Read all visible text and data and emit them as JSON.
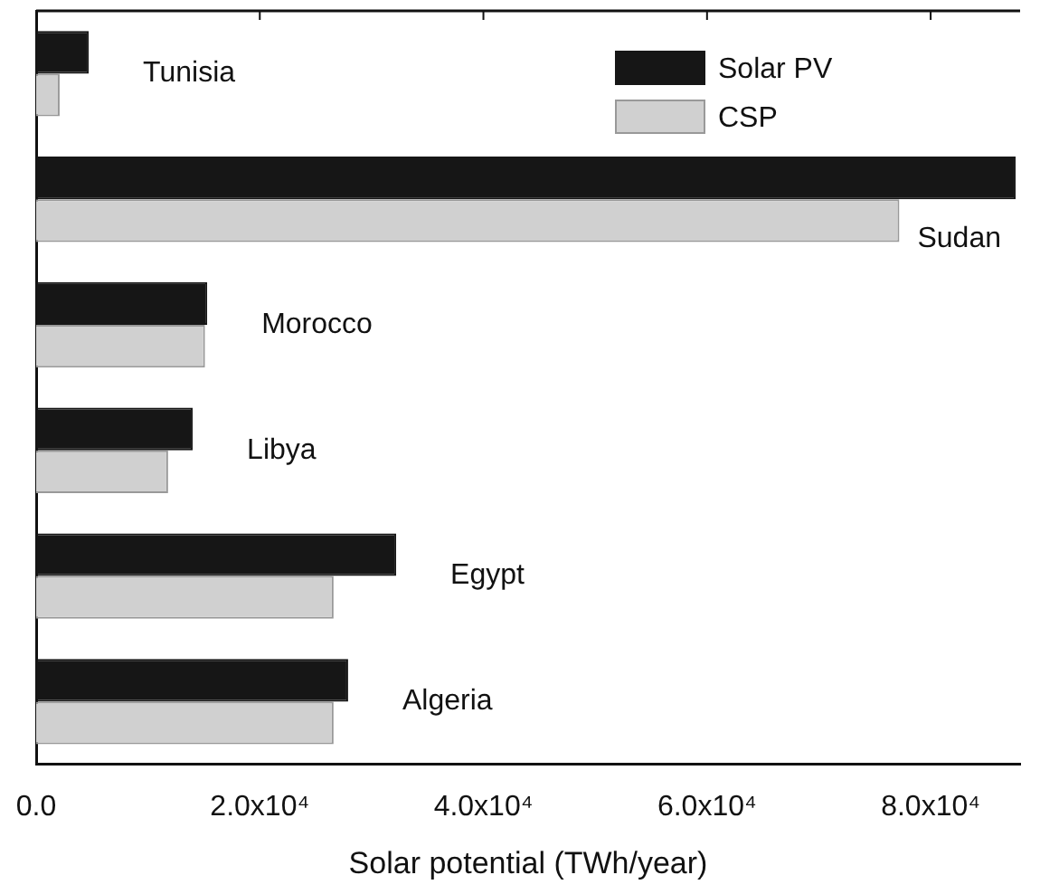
{
  "chart_data": {
    "type": "bar",
    "orientation": "horizontal",
    "categories": [
      "Tunisia",
      "Sudan",
      "Morocco",
      "Libya",
      "Egypt",
      "Algeria"
    ],
    "series": [
      {
        "name": "Solar PV",
        "color": "#161616",
        "values": [
          4700,
          87600,
          15300,
          14000,
          32200,
          27900
        ]
      },
      {
        "name": "CSP",
        "color": "#d0d0d0",
        "values": [
          2100,
          77200,
          15100,
          11800,
          26600,
          26600
        ]
      }
    ],
    "xlabel": "Solar potential (TWh/year)",
    "xlim": [
      0,
      88000
    ],
    "xticks": [
      {
        "value": 0,
        "label": "0.0"
      },
      {
        "value": 20000,
        "label": "2.0x10⁴"
      },
      {
        "value": 40000,
        "label": "4.0x10⁴"
      },
      {
        "value": 60000,
        "label": "6.0x10⁴"
      },
      {
        "value": 80000,
        "label": "8.0x10⁴"
      }
    ],
    "legend": "top right",
    "grid": false,
    "tick_labels": "x"
  }
}
